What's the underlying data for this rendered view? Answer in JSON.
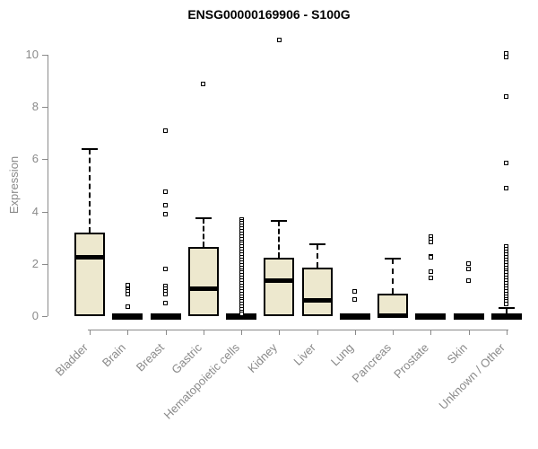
{
  "title": "ENSG00000169906 - S100G",
  "colors": {
    "background": "#FFFFFF",
    "box_fill": "#EDE8CE",
    "box_stroke": "#000000",
    "axis": "#8A8A8A",
    "tick_label": "#8A8A8A",
    "title_text": "#000000"
  },
  "chart_data": {
    "type": "boxplot",
    "title": "ENSG00000169906 - S100G",
    "ylabel": "Expression",
    "xlabel": "",
    "ylim": [
      0,
      10
    ],
    "yticks": [
      0,
      2,
      4,
      6,
      8,
      10
    ],
    "grid": false,
    "legend": null,
    "categories": [
      "Bladder",
      "Brain",
      "Breast",
      "Gastric",
      "Hematopoietic cells",
      "Kidney",
      "Liver",
      "Lung",
      "Pancreas",
      "Prostate",
      "Skin",
      "Unknown / Other"
    ],
    "series": [
      {
        "name": "Bladder",
        "low": 0,
        "q1": 0,
        "median": 2.25,
        "q3": 3.2,
        "high": 6.4,
        "outliers": []
      },
      {
        "name": "Brain",
        "low": 0,
        "q1": 0,
        "median": 0,
        "q3": 0,
        "high": 0,
        "outliers": [
          1.2,
          1.0,
          0.95,
          0.85,
          0.35
        ]
      },
      {
        "name": "Breast",
        "low": 0,
        "q1": 0,
        "median": 0,
        "q3": 0,
        "high": 0,
        "outliers": [
          7.1,
          4.75,
          4.25,
          3.9,
          1.8,
          1.15,
          1.05,
          0.95,
          0.85,
          0.5
        ]
      },
      {
        "name": "Gastric",
        "low": 0,
        "q1": 0,
        "median": 1.05,
        "q3": 2.65,
        "high": 3.75,
        "outliers": [
          8.9
        ]
      },
      {
        "name": "Hematopoietic cells",
        "low": 0,
        "q1": 0,
        "median": 0,
        "q3": 0,
        "high": 0,
        "outliers": [
          3.7,
          3.62,
          3.55,
          3.45,
          3.35,
          3.25,
          3.15,
          3.05,
          2.95,
          2.85,
          2.75,
          2.65,
          2.55,
          2.45,
          2.35,
          2.25,
          2.15,
          2.05,
          1.95,
          1.85,
          1.75,
          1.65,
          1.55,
          1.45,
          1.35,
          1.25,
          1.15,
          1.05,
          0.95,
          0.85,
          0.75,
          0.65,
          0.55,
          0.45,
          0.35,
          0.25,
          0.15,
          0.1
        ]
      },
      {
        "name": "Kidney",
        "low": 0,
        "q1": 0,
        "median": 1.35,
        "q3": 2.25,
        "high": 3.65,
        "outliers": [
          10.55
        ]
      },
      {
        "name": "Liver",
        "low": 0,
        "q1": 0,
        "median": 0.6,
        "q3": 1.85,
        "high": 2.75,
        "outliers": []
      },
      {
        "name": "Lung",
        "low": 0,
        "q1": 0,
        "median": 0,
        "q3": 0,
        "high": 0,
        "outliers": [
          0.95,
          0.65
        ]
      },
      {
        "name": "Pancreas",
        "low": 0,
        "q1": 0,
        "median": 0.03,
        "q3": 0.85,
        "high": 2.2,
        "outliers": []
      },
      {
        "name": "Prostate",
        "low": 0,
        "q1": 0,
        "median": 0,
        "q3": 0,
        "high": 0,
        "outliers": [
          3.05,
          2.95,
          2.85,
          2.3,
          2.25,
          1.7,
          1.45
        ]
      },
      {
        "name": "Skin",
        "low": 0,
        "q1": 0,
        "median": 0,
        "q3": 0,
        "high": 0,
        "outliers": [
          2.0,
          1.8,
          1.35
        ]
      },
      {
        "name": "Unknown / Other",
        "low": 0,
        "q1": 0,
        "median": 0.04,
        "q3": 0.1,
        "high": 0.3,
        "outliers": [
          10.05,
          9.9,
          8.4,
          5.85,
          4.9,
          2.65,
          2.55,
          2.45,
          2.35,
          2.25,
          2.15,
          2.05,
          1.95,
          1.85,
          1.75,
          1.65,
          1.55,
          1.45,
          1.35,
          1.25,
          1.15,
          1.05,
          0.95,
          0.85,
          0.75,
          0.65,
          0.55,
          0.45
        ]
      }
    ]
  }
}
